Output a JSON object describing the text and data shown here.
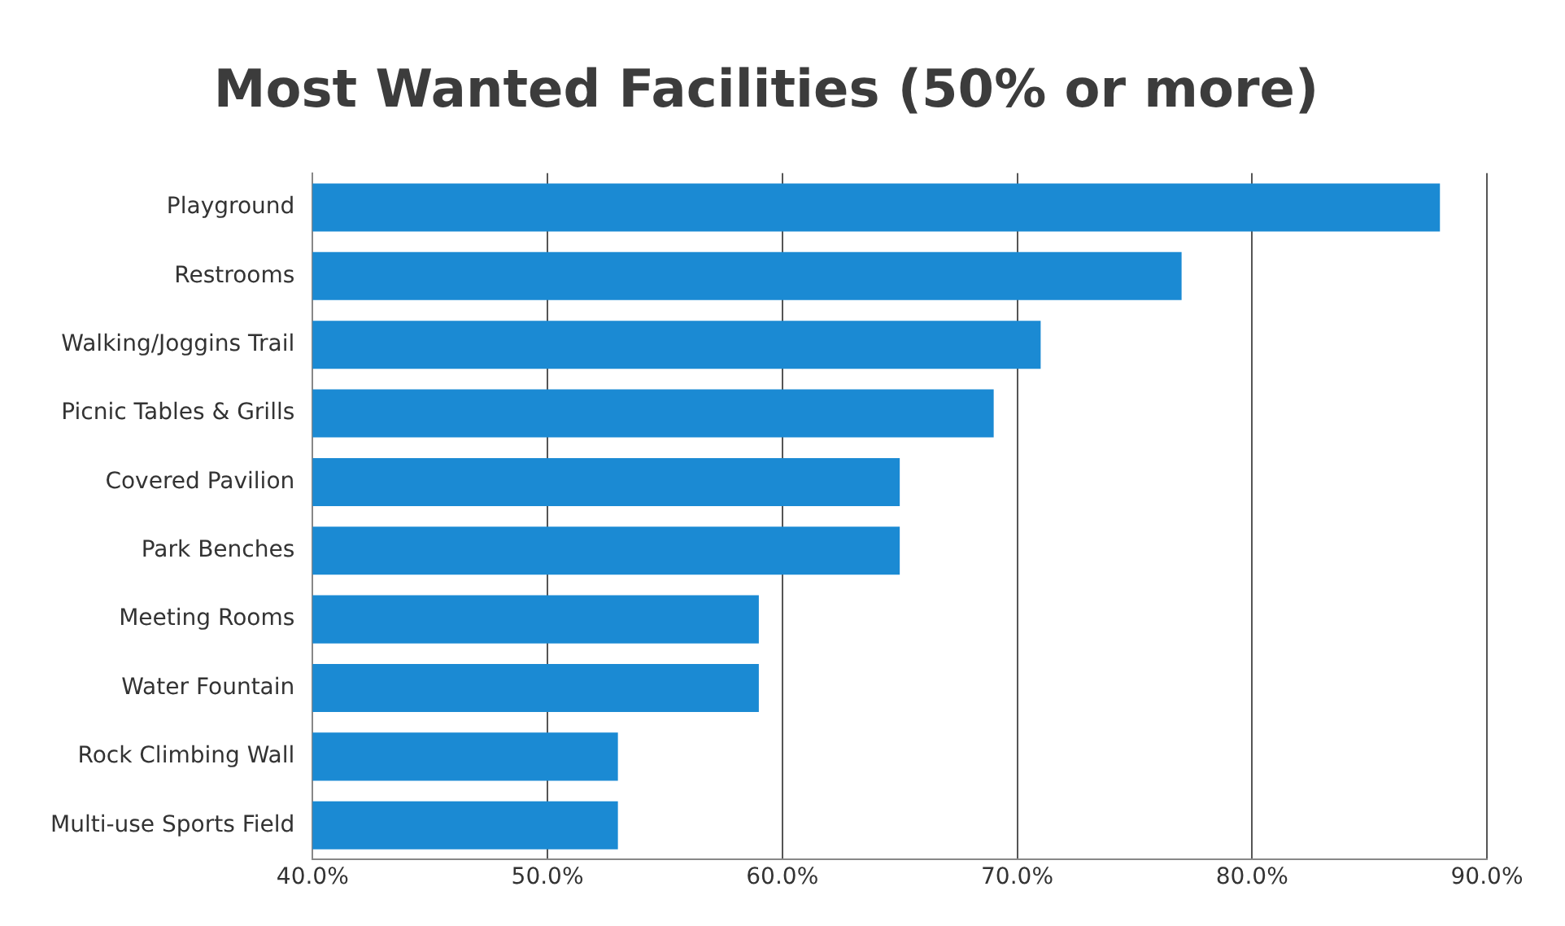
{
  "chart_data": {
    "type": "bar",
    "orientation": "horizontal",
    "title": "Most Wanted Facilities (50% or more)",
    "categories": [
      "Playground",
      "Restrooms",
      "Walking/Joggins Trail",
      "Picnic Tables & Grills",
      "Covered Pavilion",
      "Park Benches",
      "Meeting Rooms",
      "Water Fountain",
      "Rock Climbing Wall",
      "Multi-use Sports Field"
    ],
    "values": [
      88,
      77,
      71,
      69,
      65,
      65,
      59,
      59,
      53,
      53
    ],
    "color": "#1b8ad3",
    "xlim": [
      40,
      90
    ],
    "xticks": [
      {
        "value": 40,
        "label": "40.0%"
      },
      {
        "value": 50,
        "label": "50.0%"
      },
      {
        "value": 60,
        "label": "60.0%"
      },
      {
        "value": 70,
        "label": "70.0%"
      },
      {
        "value": 80,
        "label": "80.0%"
      },
      {
        "value": 90,
        "label": "90.0%"
      }
    ],
    "grid": "x",
    "legend": false
  }
}
